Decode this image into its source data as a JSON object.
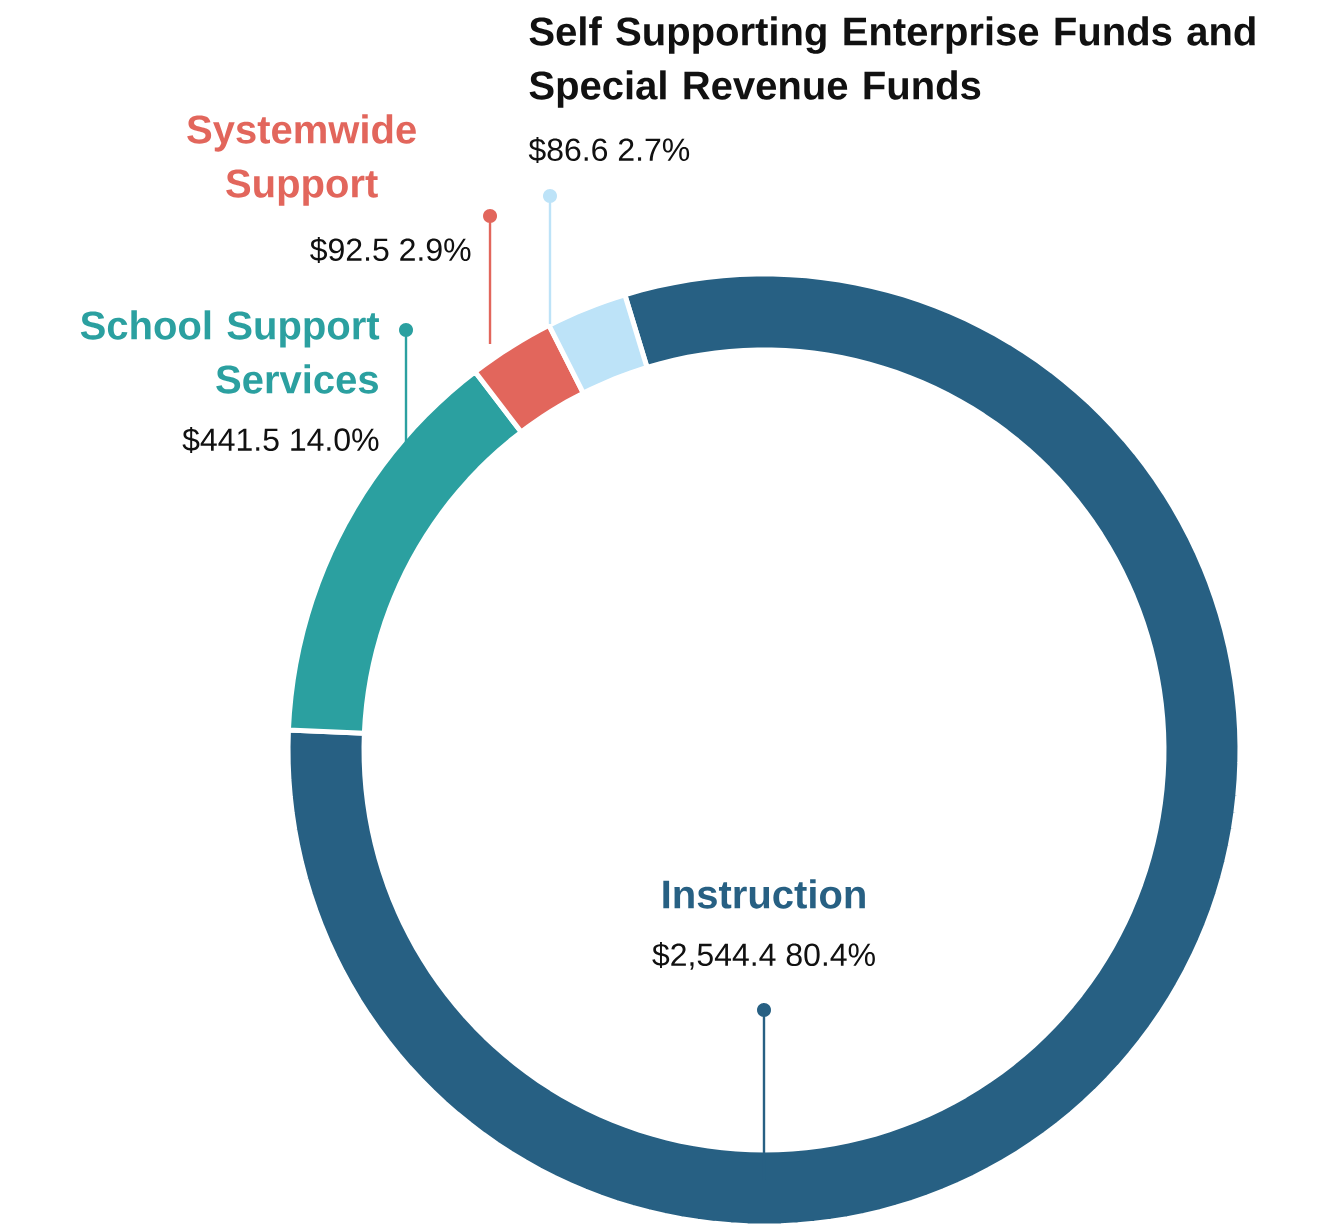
{
  "chart_data": {
    "type": "donut",
    "categories": [
      "Instruction",
      "School Support Services",
      "Systemwide Support",
      "Self Supporting Enterprise Funds and Special Revenue Funds"
    ],
    "values": [
      2544.4,
      441.5,
      92.5,
      86.6
    ],
    "colors": [
      "#276083",
      "#2ba0a0",
      "#e2665c",
      "#bde3f8"
    ],
    "value_labels": [
      "$2,544.4   80.4%",
      "$441.5   14.0%",
      "$92.5   2.9%",
      "$86.6   2.7%"
    ]
  }
}
